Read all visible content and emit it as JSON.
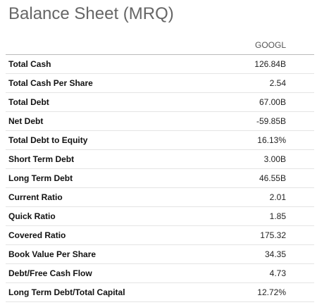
{
  "header": {
    "title": "Balance Sheet (MRQ)"
  },
  "table": {
    "columns": [
      "GOOGL"
    ],
    "rows": [
      [
        "Total Cash",
        "126.84B"
      ],
      [
        "Total Cash Per Share",
        "2.54"
      ],
      [
        "Total Debt",
        "67.00B"
      ],
      [
        "Net Debt",
        "-59.85B"
      ],
      [
        "Total Debt to Equity",
        "16.13%"
      ],
      [
        "Short Term Debt",
        "3.00B"
      ],
      [
        "Long Term Debt",
        "46.55B"
      ],
      [
        "Current Ratio",
        "2.01"
      ],
      [
        "Quick Ratio",
        "1.85"
      ],
      [
        "Covered Ratio",
        "175.32"
      ],
      [
        "Book Value Per Share",
        "34.35"
      ],
      [
        "Debt/Free Cash Flow",
        "4.73"
      ],
      [
        "Long Term Debt/Total Capital",
        "12.72%"
      ]
    ]
  }
}
